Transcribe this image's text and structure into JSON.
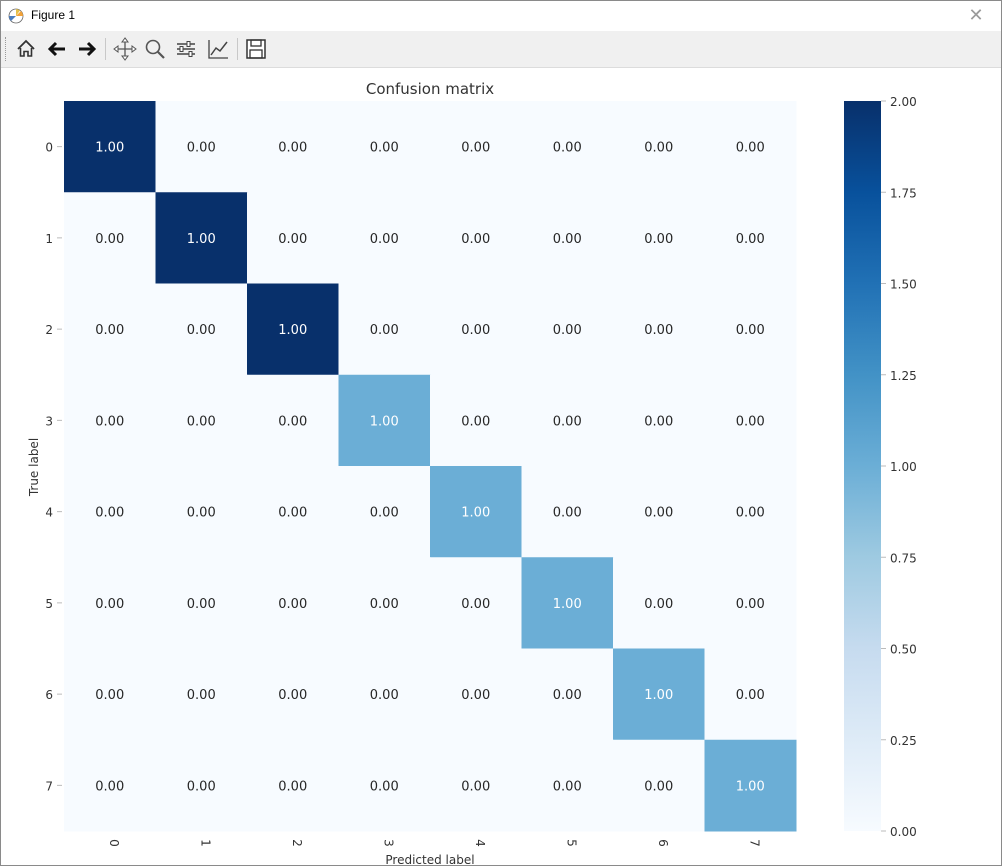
{
  "window": {
    "title": "Figure 1"
  },
  "toolbar": {
    "buttons": [
      {
        "name": "home-button",
        "icon": "home-icon"
      },
      {
        "name": "back-button",
        "icon": "arrow-left-icon"
      },
      {
        "name": "forward-button",
        "icon": "arrow-right-icon"
      },
      {
        "name": "pan-button",
        "icon": "move-icon"
      },
      {
        "name": "zoom-button",
        "icon": "magnifier-icon"
      },
      {
        "name": "subplots-button",
        "icon": "sliders-icon"
      },
      {
        "name": "edit-axes-button",
        "icon": "line-chart-icon"
      },
      {
        "name": "save-button",
        "icon": "floppy-disk-icon"
      }
    ]
  },
  "chart_data": {
    "type": "heatmap",
    "title": "Confusion matrix",
    "xlabel": "Predicted label",
    "ylabel": "True label",
    "x_categories": [
      "0",
      "1",
      "2",
      "3",
      "4",
      "5",
      "6",
      "7"
    ],
    "y_categories": [
      "0",
      "1",
      "2",
      "3",
      "4",
      "5",
      "6",
      "7"
    ],
    "annotations": [
      [
        "1.00",
        "0.00",
        "0.00",
        "0.00",
        "0.00",
        "0.00",
        "0.00",
        "0.00"
      ],
      [
        "0.00",
        "1.00",
        "0.00",
        "0.00",
        "0.00",
        "0.00",
        "0.00",
        "0.00"
      ],
      [
        "0.00",
        "0.00",
        "1.00",
        "0.00",
        "0.00",
        "0.00",
        "0.00",
        "0.00"
      ],
      [
        "0.00",
        "0.00",
        "0.00",
        "1.00",
        "0.00",
        "0.00",
        "0.00",
        "0.00"
      ],
      [
        "0.00",
        "0.00",
        "0.00",
        "0.00",
        "1.00",
        "0.00",
        "0.00",
        "0.00"
      ],
      [
        "0.00",
        "0.00",
        "0.00",
        "0.00",
        "0.00",
        "1.00",
        "0.00",
        "0.00"
      ],
      [
        "0.00",
        "0.00",
        "0.00",
        "0.00",
        "0.00",
        "0.00",
        "1.00",
        "0.00"
      ],
      [
        "0.00",
        "0.00",
        "0.00",
        "0.00",
        "0.00",
        "0.00",
        "0.00",
        "1.00"
      ]
    ],
    "color_values": [
      [
        2,
        0,
        0,
        0,
        0,
        0,
        0,
        0
      ],
      [
        0,
        2,
        0,
        0,
        0,
        0,
        0,
        0
      ],
      [
        0,
        0,
        2,
        0,
        0,
        0,
        0,
        0
      ],
      [
        0,
        0,
        0,
        1,
        0,
        0,
        0,
        0
      ],
      [
        0,
        0,
        0,
        0,
        1,
        0,
        0,
        0
      ],
      [
        0,
        0,
        0,
        0,
        0,
        1,
        0,
        0
      ],
      [
        0,
        0,
        0,
        0,
        0,
        0,
        1,
        0
      ],
      [
        0,
        0,
        0,
        0,
        0,
        0,
        0,
        1
      ]
    ],
    "colormap": "Blues",
    "colorbar": {
      "range": [
        0.0,
        2.0
      ],
      "ticks": [
        "0.00",
        "0.25",
        "0.50",
        "0.75",
        "1.00",
        "1.25",
        "1.50",
        "1.75",
        "2.00"
      ]
    },
    "colors": {
      "low": "#f7fbff",
      "mid": "#6baed6",
      "high": "#08306b"
    }
  }
}
